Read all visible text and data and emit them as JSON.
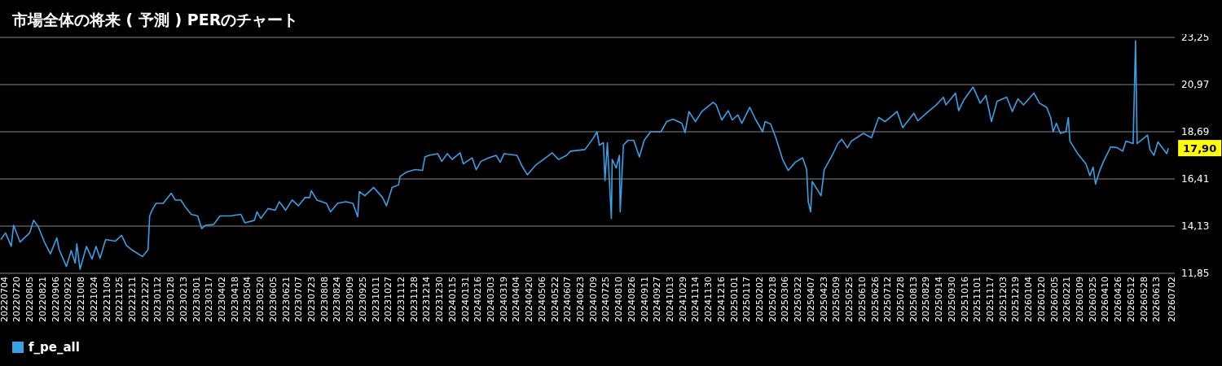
{
  "chart_data": {
    "type": "line",
    "title": "市場全体の将来 ( 予測 ) PERのチャート",
    "x": [
      "2022-07-04",
      "2022-07-10",
      "2022-07-17",
      "2022-07-20",
      "2022-07-28",
      "2022-08-09",
      "2022-08-14",
      "2022-08-20",
      "2022-08-27",
      "2022-09-04",
      "2022-09-12",
      "2022-09-15",
      "2022-09-24",
      "2022-09-30",
      "2022-10-05",
      "2022-10-07",
      "2022-10-11",
      "2022-10-19",
      "2022-10-26",
      "2022-10-31",
      "2022-11-05",
      "2022-11-12",
      "2022-11-24",
      "2022-12-02",
      "2022-12-08",
      "2022-12-16",
      "2022-12-28",
      "2023-01-04",
      "2023-01-06",
      "2023-01-09",
      "2023-01-14",
      "2023-01-23",
      "2023-02-02",
      "2023-02-07",
      "2023-02-14",
      "2023-02-20",
      "2023-02-27",
      "2023-03-07",
      "2023-03-12",
      "2023-03-17",
      "2023-03-27",
      "2023-04-04",
      "2023-04-17",
      "2023-04-30",
      "2023-05-05",
      "2023-05-17",
      "2023-05-20",
      "2023-05-25",
      "2023-06-03",
      "2023-06-12",
      "2023-06-17",
      "2023-06-25",
      "2023-07-03",
      "2023-07-11",
      "2023-07-19",
      "2023-07-25",
      "2023-07-27",
      "2023-08-03",
      "2023-08-15",
      "2023-08-20",
      "2023-08-29",
      "2023-09-08",
      "2023-09-17",
      "2023-09-23",
      "2023-09-25",
      "2023-10-02",
      "2023-10-13",
      "2023-10-24",
      "2023-10-29",
      "2023-11-05",
      "2023-11-13",
      "2023-11-15",
      "2023-11-23",
      "2023-12-04",
      "2023-12-13",
      "2023-12-16",
      "2023-12-21",
      "2024-01-01",
      "2024-01-06",
      "2024-01-13",
      "2024-01-19",
      "2024-01-29",
      "2024-02-02",
      "2024-02-13",
      "2024-02-18",
      "2024-02-24",
      "2024-03-05",
      "2024-03-14",
      "2024-03-19",
      "2024-03-24",
      "2024-04-09",
      "2024-04-15",
      "2024-04-22",
      "2024-05-02",
      "2024-05-16",
      "2024-05-23",
      "2024-05-31",
      "2024-06-10",
      "2024-06-15",
      "2024-07-03",
      "2024-07-13",
      "2024-07-18",
      "2024-07-21",
      "2024-07-26",
      "2024-07-28",
      "2024-07-31",
      "2024-08-05",
      "2024-08-06",
      "2024-08-11",
      "2024-08-15",
      "2024-08-16",
      "2024-08-20",
      "2024-08-26",
      "2024-09-02",
      "2024-09-09",
      "2024-09-15",
      "2024-09-23",
      "2024-10-06",
      "2024-10-13",
      "2024-10-21",
      "2024-11-01",
      "2024-11-05",
      "2024-11-10",
      "2024-11-18",
      "2024-11-26",
      "2024-12-10",
      "2024-12-14",
      "2024-12-21",
      "2024-12-29",
      "2025-01-03",
      "2025-01-10",
      "2025-01-15",
      "2025-01-25",
      "2025-02-01",
      "2025-02-10",
      "2025-02-13",
      "2025-02-20",
      "2025-02-26",
      "2025-03-07",
      "2025-03-14",
      "2025-03-23",
      "2025-04-01",
      "2025-04-06",
      "2025-04-08",
      "2025-04-11",
      "2025-04-13",
      "2025-04-24",
      "2025-04-28",
      "2025-05-08",
      "2025-05-15",
      "2025-05-20",
      "2025-05-27",
      "2025-06-01",
      "2025-06-16",
      "2025-06-26",
      "2025-07-05",
      "2025-07-13",
      "2025-07-28",
      "2025-08-04",
      "2025-08-18",
      "2025-08-23",
      "2025-09-05",
      "2025-09-14",
      "2025-09-24",
      "2025-09-27",
      "2025-10-09",
      "2025-10-13",
      "2025-10-19",
      "2025-10-31",
      "2025-11-09",
      "2025-11-16",
      "2025-11-23",
      "2025-11-30",
      "2025-12-12",
      "2025-12-19",
      "2025-12-26",
      "2026-01-02",
      "2026-01-15",
      "2026-01-22",
      "2026-01-31",
      "2026-02-05",
      "2026-02-08",
      "2026-02-12",
      "2026-02-17",
      "2026-02-24",
      "2026-02-27",
      "2026-03-01",
      "2026-03-10",
      "2026-03-21",
      "2026-03-26",
      "2026-03-30",
      "2026-04-02",
      "2026-04-07",
      "2026-04-12",
      "2026-04-21",
      "2026-04-29",
      "2026-05-06",
      "2026-05-10",
      "2026-05-19",
      "2026-05-22",
      "2026-05-24",
      "2026-06-06",
      "2026-06-09",
      "2026-06-14",
      "2026-06-19",
      "2026-06-30",
      "2026-07-02"
    ],
    "series": [
      {
        "name": "f_pe_all",
        "color": "#3aa0e6",
        "values": [
          13.48,
          13.8,
          13.15,
          14.17,
          13.36,
          13.8,
          14.41,
          14.09,
          13.4,
          12.79,
          13.56,
          12.99,
          12.18,
          12.95,
          12.34,
          13.27,
          12.05,
          13.15,
          12.54,
          13.15,
          12.58,
          13.48,
          13.4,
          13.68,
          13.19,
          12.95,
          12.66,
          12.99,
          14.62,
          14.9,
          15.23,
          15.23,
          15.72,
          15.39,
          15.39,
          15.03,
          14.7,
          14.62,
          14.01,
          14.17,
          14.21,
          14.62,
          14.62,
          14.7,
          14.29,
          14.41,
          14.82,
          14.5,
          14.98,
          14.9,
          15.31,
          14.9,
          15.39,
          15.11,
          15.51,
          15.51,
          15.84,
          15.39,
          15.23,
          14.82,
          15.23,
          15.31,
          15.23,
          14.58,
          15.8,
          15.6,
          16.0,
          15.51,
          15.11,
          16.0,
          16.12,
          16.53,
          16.74,
          16.86,
          16.82,
          17.47,
          17.55,
          17.63,
          17.26,
          17.63,
          17.35,
          17.67,
          17.14,
          17.43,
          16.86,
          17.26,
          17.43,
          17.55,
          17.22,
          17.63,
          17.55,
          17.06,
          16.61,
          17.06,
          17.47,
          17.67,
          17.35,
          17.55,
          17.75,
          17.83,
          18.36,
          18.69,
          18.04,
          18.16,
          16.33,
          18.16,
          14.5,
          17.35,
          16.94,
          17.55,
          14.82,
          18.04,
          18.28,
          18.28,
          17.47,
          18.28,
          18.69,
          18.69,
          19.18,
          19.3,
          19.1,
          18.65,
          19.67,
          19.18,
          19.67,
          20.11,
          19.99,
          19.26,
          19.71,
          19.26,
          19.5,
          19.1,
          19.87,
          19.3,
          18.69,
          19.18,
          19.06,
          18.45,
          17.35,
          16.82,
          17.22,
          17.43,
          16.86,
          15.31,
          14.82,
          16.29,
          15.6,
          16.86,
          17.55,
          18.12,
          18.32,
          17.92,
          18.24,
          18.61,
          18.4,
          19.38,
          19.18,
          19.67,
          18.89,
          19.58,
          19.22,
          19.67,
          19.95,
          20.36,
          19.99,
          20.56,
          19.71,
          20.2,
          20.85,
          20.07,
          20.44,
          19.18,
          20.16,
          20.36,
          19.67,
          20.28,
          19.99,
          20.56,
          20.07,
          19.87,
          19.38,
          18.69,
          19.1,
          18.61,
          18.69,
          19.38,
          18.24,
          17.67,
          17.14,
          16.57,
          16.98,
          16.16,
          16.78,
          17.26,
          17.96,
          17.92,
          17.75,
          18.24,
          18.12,
          23.09,
          18.12,
          18.53,
          17.83,
          17.55,
          18.2,
          17.63,
          17.9
        ]
      }
    ],
    "xlim": [
      "2022-07-03",
      "2026-07-10"
    ],
    "xticks": [
      {
        "value": "2022-07-04",
        "label": "20220704"
      },
      {
        "value": "2022-07-20",
        "label": "20220720"
      },
      {
        "value": "2022-08-05",
        "label": "20220805"
      },
      {
        "value": "2022-08-21",
        "label": "20220821"
      },
      {
        "value": "2022-09-06",
        "label": "20220906"
      },
      {
        "value": "2022-09-22",
        "label": "20220922"
      },
      {
        "value": "2022-10-08",
        "label": "20221008"
      },
      {
        "value": "2022-10-24",
        "label": "20221024"
      },
      {
        "value": "2022-11-09",
        "label": "20221109"
      },
      {
        "value": "2022-11-25",
        "label": "20221125"
      },
      {
        "value": "2022-12-11",
        "label": "20221211"
      },
      {
        "value": "2022-12-27",
        "label": "20221227"
      },
      {
        "value": "2023-01-12",
        "label": "20230112"
      },
      {
        "value": "2023-01-28",
        "label": "20230128"
      },
      {
        "value": "2023-02-13",
        "label": "20230213"
      },
      {
        "value": "2023-03-01",
        "label": "20230301"
      },
      {
        "value": "2023-03-17",
        "label": "20230317"
      },
      {
        "value": "2023-04-02",
        "label": "20230402"
      },
      {
        "value": "2023-04-18",
        "label": "20230418"
      },
      {
        "value": "2023-05-04",
        "label": "20230504"
      },
      {
        "value": "2023-05-20",
        "label": "20230520"
      },
      {
        "value": "2023-06-05",
        "label": "20230605"
      },
      {
        "value": "2023-06-21",
        "label": "20230621"
      },
      {
        "value": "2023-07-07",
        "label": "20230707"
      },
      {
        "value": "2023-07-23",
        "label": "20230723"
      },
      {
        "value": "2023-08-08",
        "label": "20230808"
      },
      {
        "value": "2023-08-24",
        "label": "20230824"
      },
      {
        "value": "2023-09-09",
        "label": "20230909"
      },
      {
        "value": "2023-09-25",
        "label": "20230925"
      },
      {
        "value": "2023-10-11",
        "label": "20231011"
      },
      {
        "value": "2023-10-27",
        "label": "20231027"
      },
      {
        "value": "2023-11-12",
        "label": "20231112"
      },
      {
        "value": "2023-11-28",
        "label": "20231128"
      },
      {
        "value": "2023-12-14",
        "label": "20231214"
      },
      {
        "value": "2023-12-30",
        "label": "20231230"
      },
      {
        "value": "2024-01-15",
        "label": "20240115"
      },
      {
        "value": "2024-01-31",
        "label": "20240131"
      },
      {
        "value": "2024-02-16",
        "label": "20240216"
      },
      {
        "value": "2024-03-03",
        "label": "20240303"
      },
      {
        "value": "2024-03-19",
        "label": "20240319"
      },
      {
        "value": "2024-04-04",
        "label": "20240404"
      },
      {
        "value": "2024-04-20",
        "label": "20240420"
      },
      {
        "value": "2024-05-06",
        "label": "20240506"
      },
      {
        "value": "2024-05-22",
        "label": "20240522"
      },
      {
        "value": "2024-06-07",
        "label": "20240607"
      },
      {
        "value": "2024-06-23",
        "label": "20240623"
      },
      {
        "value": "2024-07-09",
        "label": "20240709"
      },
      {
        "value": "2024-07-25",
        "label": "20240725"
      },
      {
        "value": "2024-08-10",
        "label": "20240810"
      },
      {
        "value": "2024-08-26",
        "label": "20240826"
      },
      {
        "value": "2024-09-11",
        "label": "20240911"
      },
      {
        "value": "2024-09-27",
        "label": "20240927"
      },
      {
        "value": "2024-10-13",
        "label": "20241013"
      },
      {
        "value": "2024-10-29",
        "label": "20241029"
      },
      {
        "value": "2024-11-14",
        "label": "20241114"
      },
      {
        "value": "2024-11-30",
        "label": "20241130"
      },
      {
        "value": "2024-12-16",
        "label": "20241216"
      },
      {
        "value": "2025-01-01",
        "label": "20250101"
      },
      {
        "value": "2025-01-17",
        "label": "20250117"
      },
      {
        "value": "2025-02-02",
        "label": "20250202"
      },
      {
        "value": "2025-02-18",
        "label": "20250218"
      },
      {
        "value": "2025-03-06",
        "label": "20250306"
      },
      {
        "value": "2025-03-22",
        "label": "20250322"
      },
      {
        "value": "2025-04-07",
        "label": "20250407"
      },
      {
        "value": "2025-04-23",
        "label": "20250423"
      },
      {
        "value": "2025-05-09",
        "label": "20250509"
      },
      {
        "value": "2025-05-25",
        "label": "20250525"
      },
      {
        "value": "2025-06-10",
        "label": "20250610"
      },
      {
        "value": "2025-06-26",
        "label": "20250626"
      },
      {
        "value": "2025-07-12",
        "label": "20250712"
      },
      {
        "value": "2025-07-28",
        "label": "20250728"
      },
      {
        "value": "2025-08-13",
        "label": "20250813"
      },
      {
        "value": "2025-08-29",
        "label": "20250829"
      },
      {
        "value": "2025-09-14",
        "label": "20250914"
      },
      {
        "value": "2025-09-30",
        "label": "20250930"
      },
      {
        "value": "2025-10-16",
        "label": "20251016"
      },
      {
        "value": "2025-11-01",
        "label": "20251101"
      },
      {
        "value": "2025-11-17",
        "label": "20251117"
      },
      {
        "value": "2025-12-03",
        "label": "20251203"
      },
      {
        "value": "2025-12-19",
        "label": "20251219"
      },
      {
        "value": "2026-01-04",
        "label": "20260104"
      },
      {
        "value": "2026-01-20",
        "label": "20260120"
      },
      {
        "value": "2026-02-05",
        "label": "20260205"
      },
      {
        "value": "2026-02-21",
        "label": "20260221"
      },
      {
        "value": "2026-03-09",
        "label": "20260309"
      },
      {
        "value": "2026-03-25",
        "label": "20260325"
      },
      {
        "value": "2026-04-10",
        "label": "20260410"
      },
      {
        "value": "2026-04-26",
        "label": "20260426"
      },
      {
        "value": "2026-05-12",
        "label": "20260512"
      },
      {
        "value": "2026-05-28",
        "label": "20260528"
      },
      {
        "value": "2026-06-13",
        "label": "20260613"
      },
      {
        "value": "2026-07-02",
        "label": "20260702"
      }
    ],
    "ylim": [
      11.85,
      23.25
    ],
    "yticks": [
      {
        "value": 11.85,
        "label": "11,85"
      },
      {
        "value": 14.13,
        "label": "14,13"
      },
      {
        "value": 16.41,
        "label": "16,41"
      },
      {
        "value": 18.69,
        "label": "18,69"
      },
      {
        "value": 20.97,
        "label": "20,97"
      },
      {
        "value": 23.25,
        "label": "23,25"
      }
    ],
    "grid": "y",
    "legend": "bottom left",
    "annotations": [
      {
        "text": "17,90",
        "x": "2026-07-02",
        "y": 17.9
      }
    ]
  }
}
